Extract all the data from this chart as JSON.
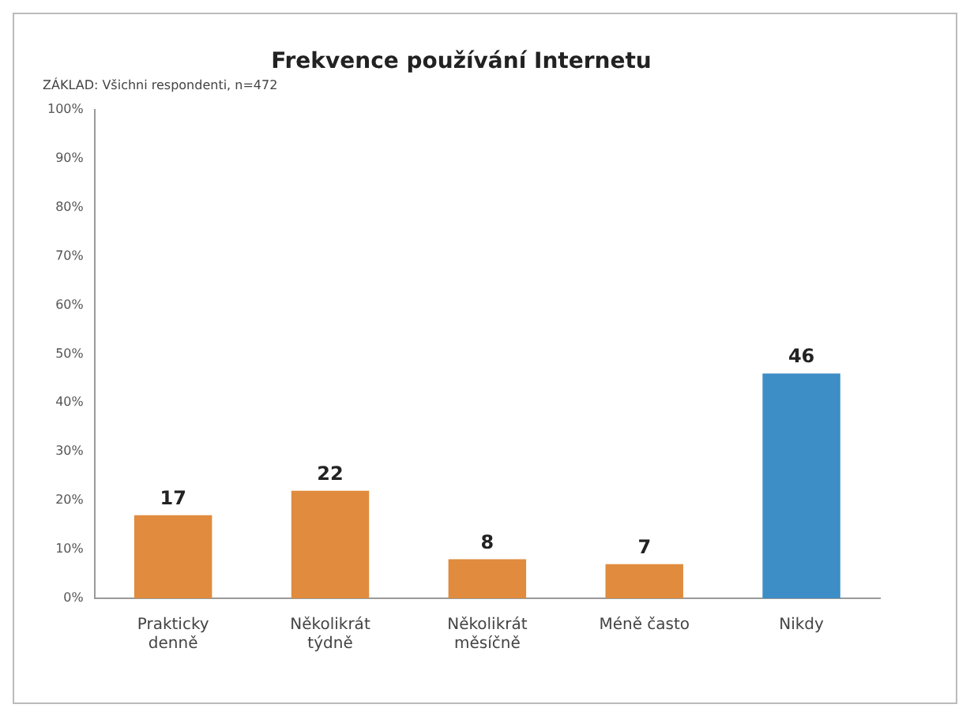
{
  "chart_data": {
    "type": "bar",
    "title": "Frekvence používání Internetu",
    "subtitle": "ZÁKLAD: Všichni respondenti, n=472",
    "categories": [
      "Prakticky denně",
      "Několikrát týdně",
      "Několikrát měsíčně",
      "Méně často",
      "Nikdy"
    ],
    "values": [
      17,
      22,
      8,
      7,
      46
    ],
    "colors": [
      "#e08b3d",
      "#e08b3d",
      "#e08b3d",
      "#e08b3d",
      "#3d8dc6"
    ],
    "ylim": [
      0,
      100
    ],
    "yticks": [
      {
        "value": 0,
        "label": "0%"
      },
      {
        "value": 10,
        "label": "10%"
      },
      {
        "value": 20,
        "label": "20%"
      },
      {
        "value": 30,
        "label": "30%"
      },
      {
        "value": 40,
        "label": "40%"
      },
      {
        "value": 50,
        "label": "50%"
      },
      {
        "value": 60,
        "label": "60%"
      },
      {
        "value": 70,
        "label": "70%"
      },
      {
        "value": 80,
        "label": "80%"
      },
      {
        "value": 90,
        "label": "90%"
      },
      {
        "value": 100,
        "label": "100%"
      }
    ],
    "data_labels": true,
    "grid": false,
    "legend": false
  }
}
